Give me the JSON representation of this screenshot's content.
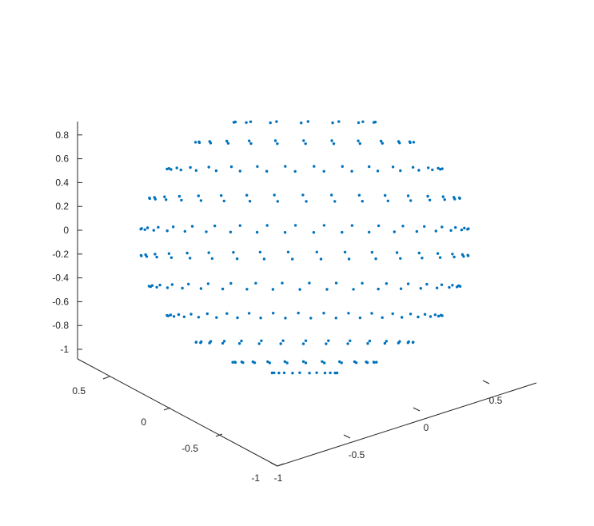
{
  "chart_data": {
    "type": "scatter3d",
    "title": "",
    "xlabel": "",
    "ylabel": "",
    "zlabel": "",
    "grid": false,
    "marker_color": "#0072BD",
    "x_ticks": [
      "-1",
      "-0.5",
      "0",
      "0.5"
    ],
    "y_ticks": [
      "-1",
      "-0.5",
      "0",
      "0.5"
    ],
    "z_ticks": [
      "-1",
      "-0.8",
      "-0.6",
      "-0.4",
      "-0.2",
      "0",
      "0.2",
      "0.4",
      "0.6",
      "0.8"
    ],
    "xlim": [
      -1,
      1
    ],
    "ylim": [
      -1,
      1
    ],
    "zlim": [
      -1,
      0.9
    ],
    "series": [
      {
        "description_of_points": "points sampled on a unit sphere on latitude rings",
        "ring_z": [
          -0.98,
          -0.9,
          -0.75,
          -0.55,
          -0.33,
          -0.1,
          0.1,
          0.33,
          0.55,
          0.75,
          0.9
        ],
        "ring_counts": [
          12,
          24,
          30,
          34,
          36,
          36,
          36,
          34,
          30,
          24,
          14
        ]
      }
    ]
  }
}
